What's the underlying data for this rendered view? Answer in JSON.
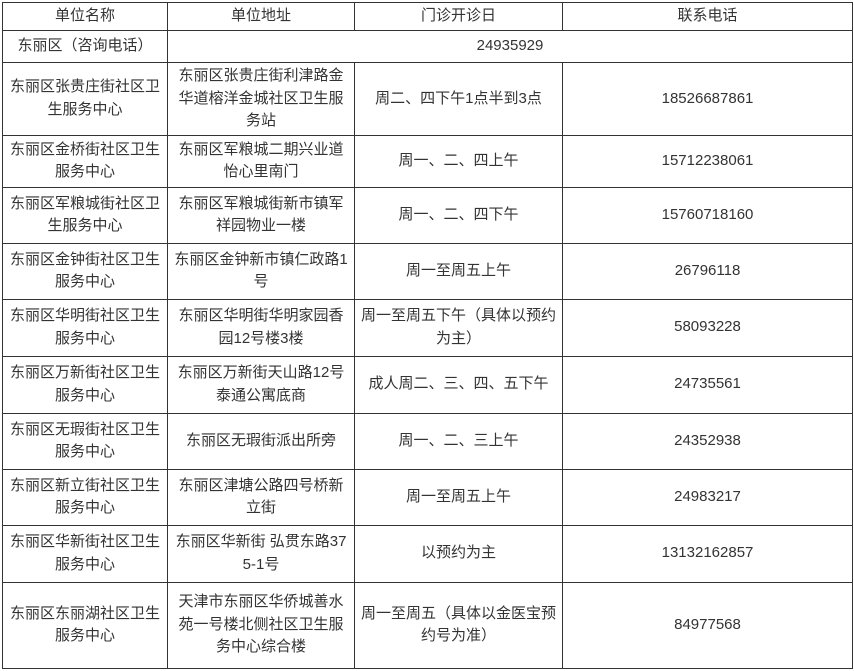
{
  "page": {
    "background_color": "#ffffff",
    "border_color": "#333333",
    "text_color": "#333333"
  },
  "table": {
    "headers": [
      "单位名称",
      "单位地址",
      "门诊开诊日",
      "联系电话"
    ],
    "district_row": {
      "name": "东丽区（咨询电话）",
      "phone": "24935929"
    },
    "rows": [
      {
        "name": "东丽区张贵庄街社区卫生服务中心",
        "address": "东丽区张贵庄街利津路金华道榕洋金城社区卫生服务站",
        "schedule": "周二、四下午1点半到3点",
        "phone": "18526687861"
      },
      {
        "name": "东丽区金桥街社区卫生服务中心",
        "address": "东丽区军粮城二期兴业道怡心里南门",
        "schedule": "周一、二、四上午",
        "phone": "15712238061"
      },
      {
        "name": "东丽区军粮城街社区卫生服务中心",
        "address": "东丽区军粮城街新市镇军祥园物业一楼",
        "schedule": "周一、二、四下午",
        "phone": "15760718160"
      },
      {
        "name": "东丽区金钟街社区卫生服务中心",
        "address": "东丽区金钟新市镇仁政路1号",
        "schedule": "周一至周五上午",
        "phone": "26796118"
      },
      {
        "name": "东丽区华明街社区卫生服务中心",
        "address": "东丽区华明街华明家园香园12号楼3楼",
        "schedule": "周一至周五下午（具体以预约为主）",
        "phone": "58093228"
      },
      {
        "name": "东丽区万新街社区卫生服务中心",
        "address": "东丽区万新街天山路12号泰通公寓底商",
        "schedule": "成人周二、三、四、五下午",
        "phone": "24735561"
      },
      {
        "name": "东丽区无瑕街社区卫生服务中心",
        "address": "东丽区无瑕街派出所旁",
        "schedule": "周一、二、三上午",
        "phone": "24352938"
      },
      {
        "name": "东丽区新立街社区卫生服务中心",
        "address": "东丽区津塘公路四号桥新立街",
        "schedule": "周一至周五上午",
        "phone": "24983217"
      },
      {
        "name": "东丽区华新街社区卫生服务中心",
        "address": "东丽区华新街 弘贯东路375-1号",
        "schedule": "以预约为主",
        "phone": "13132162857"
      },
      {
        "name": "东丽区东丽湖社区卫生服务中心",
        "address": "天津市东丽区华侨城善水苑一号楼北侧社区卫生服务中心综合楼",
        "schedule": "周一至周五（具体以金医宝预约号为准）",
        "phone": "84977568"
      }
    ]
  }
}
